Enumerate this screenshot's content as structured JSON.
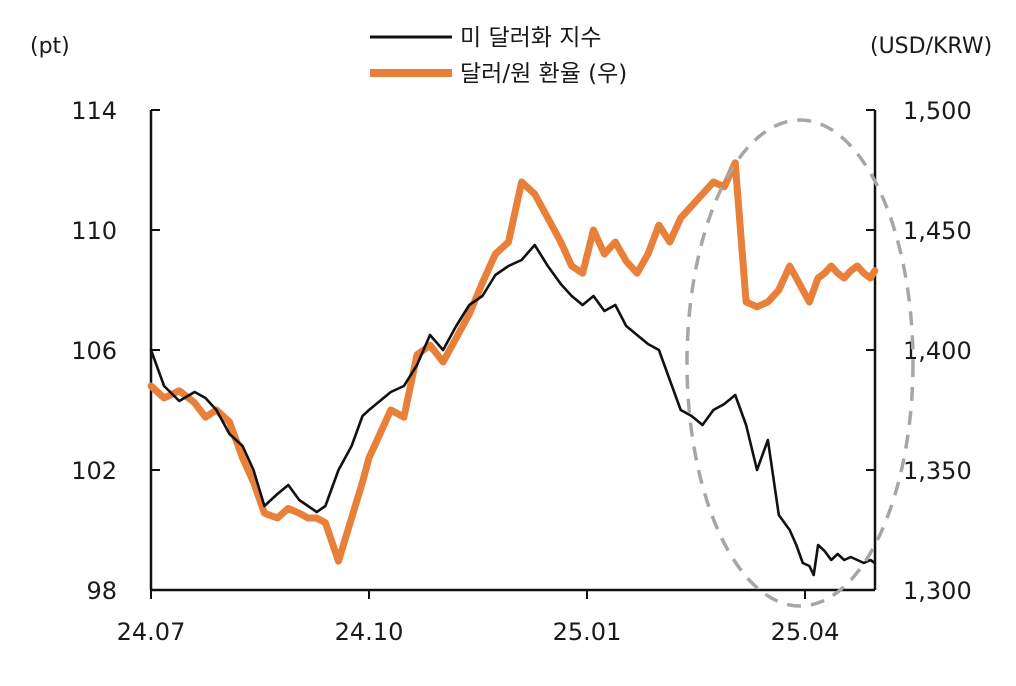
{
  "chart_data": {
    "type": "line",
    "left_unit": "(pt)",
    "right_unit": "(USD/KRW)",
    "x_ticks": [
      "24.07",
      "24.10",
      "25.01",
      "25.04"
    ],
    "y_left_ticks": [
      "114",
      "110",
      "106",
      "102",
      "98"
    ],
    "y_right_ticks": [
      "1,500",
      "1,450",
      "1,400",
      "1,350",
      "1,300"
    ],
    "ylim_left": [
      98,
      114
    ],
    "ylim_right": [
      1300,
      1500
    ],
    "x_range_months": [
      0,
      3.32
    ],
    "annotation": "dashed ellipse highlighting Apr 2025 period",
    "series": [
      {
        "name": "미 달러화 지수",
        "axis": "left",
        "color": "#111111",
        "x": [
          0,
          0.06,
          0.13,
          0.2,
          0.25,
          0.3,
          0.36,
          0.42,
          0.47,
          0.52,
          0.58,
          0.63,
          0.68,
          0.72,
          0.76,
          0.8,
          0.86,
          0.92,
          0.97,
          1.0,
          1.05,
          1.1,
          1.16,
          1.22,
          1.28,
          1.34,
          1.4,
          1.46,
          1.52,
          1.58,
          1.64,
          1.7,
          1.76,
          1.82,
          1.88,
          1.93,
          1.98,
          2.03,
          2.08,
          2.13,
          2.18,
          2.23,
          2.28,
          2.33,
          2.38,
          2.43,
          2.48,
          2.53,
          2.58,
          2.63,
          2.68,
          2.73,
          2.78,
          2.83,
          2.88,
          2.93,
          2.96,
          2.99,
          3.02,
          3.04,
          3.06,
          3.09,
          3.12,
          3.15,
          3.18,
          3.21,
          3.24,
          3.27,
          3.3,
          3.32
        ],
        "values": [
          106.0,
          104.8,
          104.3,
          104.6,
          104.4,
          104.0,
          103.2,
          102.8,
          102.0,
          100.8,
          101.2,
          101.5,
          101.0,
          100.8,
          100.6,
          100.8,
          102.0,
          102.8,
          103.8,
          104.0,
          104.3,
          104.6,
          104.8,
          105.5,
          106.5,
          106.0,
          106.8,
          107.5,
          107.8,
          108.5,
          108.8,
          109.0,
          109.5,
          108.8,
          108.2,
          107.8,
          107.5,
          107.8,
          107.3,
          107.5,
          106.8,
          106.5,
          106.2,
          106.0,
          105.0,
          104.0,
          103.8,
          103.5,
          104.0,
          104.2,
          104.5,
          103.5,
          102.0,
          103.0,
          100.5,
          100.0,
          99.5,
          98.9,
          98.8,
          98.5,
          99.5,
          99.3,
          99.0,
          99.2,
          99.0,
          99.1,
          99.0,
          98.9,
          99.0,
          98.9
        ],
        "note": "approximate values read from the plotted line"
      },
      {
        "name": "달러/원 환율 (우)",
        "axis": "right",
        "color": "#e8803a",
        "x": [
          0,
          0.06,
          0.13,
          0.2,
          0.25,
          0.3,
          0.36,
          0.42,
          0.47,
          0.52,
          0.58,
          0.63,
          0.68,
          0.72,
          0.76,
          0.8,
          0.86,
          0.92,
          0.97,
          1.0,
          1.05,
          1.1,
          1.16,
          1.22,
          1.28,
          1.34,
          1.4,
          1.46,
          1.52,
          1.58,
          1.64,
          1.7,
          1.76,
          1.82,
          1.88,
          1.93,
          1.98,
          2.03,
          2.08,
          2.13,
          2.18,
          2.23,
          2.28,
          2.33,
          2.38,
          2.43,
          2.48,
          2.53,
          2.58,
          2.63,
          2.68,
          2.73,
          2.78,
          2.83,
          2.88,
          2.93,
          2.96,
          2.99,
          3.02,
          3.04,
          3.06,
          3.09,
          3.12,
          3.15,
          3.18,
          3.21,
          3.24,
          3.27,
          3.3,
          3.32
        ],
        "values": [
          1385,
          1380,
          1383,
          1378,
          1372,
          1375,
          1370,
          1355,
          1345,
          1332,
          1330,
          1334,
          1332,
          1330,
          1330,
          1328,
          1312,
          1330,
          1345,
          1355,
          1365,
          1375,
          1372,
          1398,
          1402,
          1395,
          1405,
          1415,
          1428,
          1440,
          1445,
          1470,
          1465,
          1455,
          1445,
          1435,
          1432,
          1450,
          1440,
          1445,
          1437,
          1432,
          1440,
          1452,
          1445,
          1455,
          1460,
          1465,
          1470,
          1468,
          1478,
          1420,
          1418,
          1420,
          1425,
          1435,
          1430,
          1425,
          1420,
          1425,
          1430,
          1432,
          1435,
          1432,
          1430,
          1433,
          1435,
          1432,
          1430,
          1433
        ],
        "note": "approximate values read from the plotted line"
      }
    ]
  }
}
